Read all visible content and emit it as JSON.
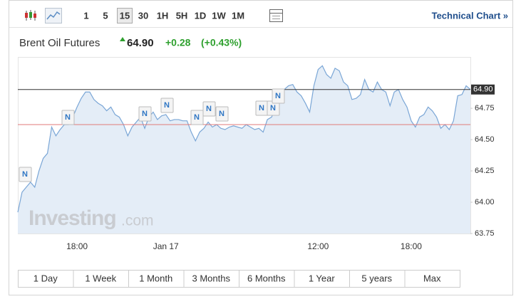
{
  "toolbar": {
    "intervals": [
      "1",
      "5",
      "15",
      "30",
      "1H",
      "5H",
      "1D",
      "1W",
      "1M"
    ],
    "selected": "15",
    "link": "Technical Chart »"
  },
  "header": {
    "name": "Brent Oil Futures",
    "price": "64.90",
    "change": "+0.28",
    "change_pct": "(+0.43%)"
  },
  "ranges": [
    "1 Day",
    "1 Week",
    "1 Month",
    "3 Months",
    "6 Months",
    "1 Year",
    "5 years",
    "Max"
  ],
  "chart_data": {
    "type": "area",
    "watermark_brand": "Investing",
    "watermark_suffix": ".com",
    "categories": [
      null,
      null,
      null,
      null,
      null,
      null,
      null,
      null,
      null,
      null,
      null,
      null,
      null,
      null,
      "18:00",
      null,
      null,
      null,
      null,
      null,
      null,
      null,
      null,
      null,
      null,
      null,
      null,
      null,
      null,
      null,
      null,
      null,
      null,
      null,
      null,
      "Jan 17",
      null,
      null,
      null,
      null,
      null,
      null,
      null,
      null,
      null,
      null,
      null,
      null,
      null,
      null,
      null,
      null,
      null,
      null,
      null,
      null,
      null,
      null,
      null,
      null,
      null,
      null,
      null,
      null,
      null,
      null,
      null,
      null,
      null,
      null,
      null,
      "12:00",
      null,
      null,
      null,
      null,
      null,
      null,
      null,
      null,
      null,
      null,
      null,
      null,
      null,
      null,
      null,
      null,
      null,
      null,
      null,
      null,
      null,
      "18:00",
      null,
      null,
      null,
      null,
      null,
      null,
      null,
      null,
      null,
      null,
      null,
      null,
      null,
      null
    ],
    "series": [
      {
        "name": "Brent Oil Futures",
        "color": "#7aa6d6",
        "fill": "#e4edf7",
        "values": [
          63.92,
          64.08,
          64.12,
          64.16,
          64.12,
          64.25,
          64.35,
          64.39,
          64.6,
          64.53,
          64.58,
          64.62,
          64.62,
          64.68,
          64.76,
          64.83,
          64.88,
          64.88,
          64.82,
          64.79,
          64.77,
          64.73,
          64.76,
          64.7,
          64.68,
          64.62,
          64.53,
          64.6,
          64.64,
          64.68,
          64.59,
          64.68,
          64.72,
          64.66,
          64.69,
          64.7,
          64.65,
          64.66,
          64.66,
          64.65,
          64.65,
          64.56,
          64.49,
          64.56,
          64.59,
          64.64,
          64.6,
          64.62,
          64.59,
          64.58,
          64.6,
          64.61,
          64.6,
          64.59,
          64.62,
          64.6,
          64.58,
          64.59,
          64.56,
          64.66,
          64.68,
          64.76,
          64.82,
          64.9,
          64.93,
          64.94,
          64.88,
          64.85,
          64.79,
          64.72,
          64.93,
          65.06,
          65.09,
          65.02,
          64.99,
          65.07,
          65.05,
          64.96,
          64.93,
          64.82,
          64.83,
          64.86,
          64.98,
          64.9,
          64.88,
          64.96,
          64.9,
          64.88,
          64.77,
          64.88,
          64.9,
          64.82,
          64.76,
          64.65,
          64.6,
          64.68,
          64.7,
          64.76,
          64.73,
          64.68,
          64.59,
          64.62,
          64.58,
          64.65,
          64.85,
          64.86,
          64.93,
          64.9
        ]
      }
    ],
    "last_value": 64.9,
    "last_value_label": "64.90",
    "last_color": "#333333",
    "prev_close": 64.62,
    "prev_close_color": "#e07a7a",
    "annotations": [
      "N",
      "N",
      "N",
      "N",
      "N",
      "N",
      "N",
      "N",
      "N",
      "N"
    ],
    "ylim": [
      63.75,
      65.16
    ],
    "yticks": [
      63.75,
      {
        "value": 64,
        "label": "64.00"
      },
      64.25,
      {
        "value": 64.5,
        "label": "64.50"
      },
      64.75
    ],
    "grid": false
  }
}
